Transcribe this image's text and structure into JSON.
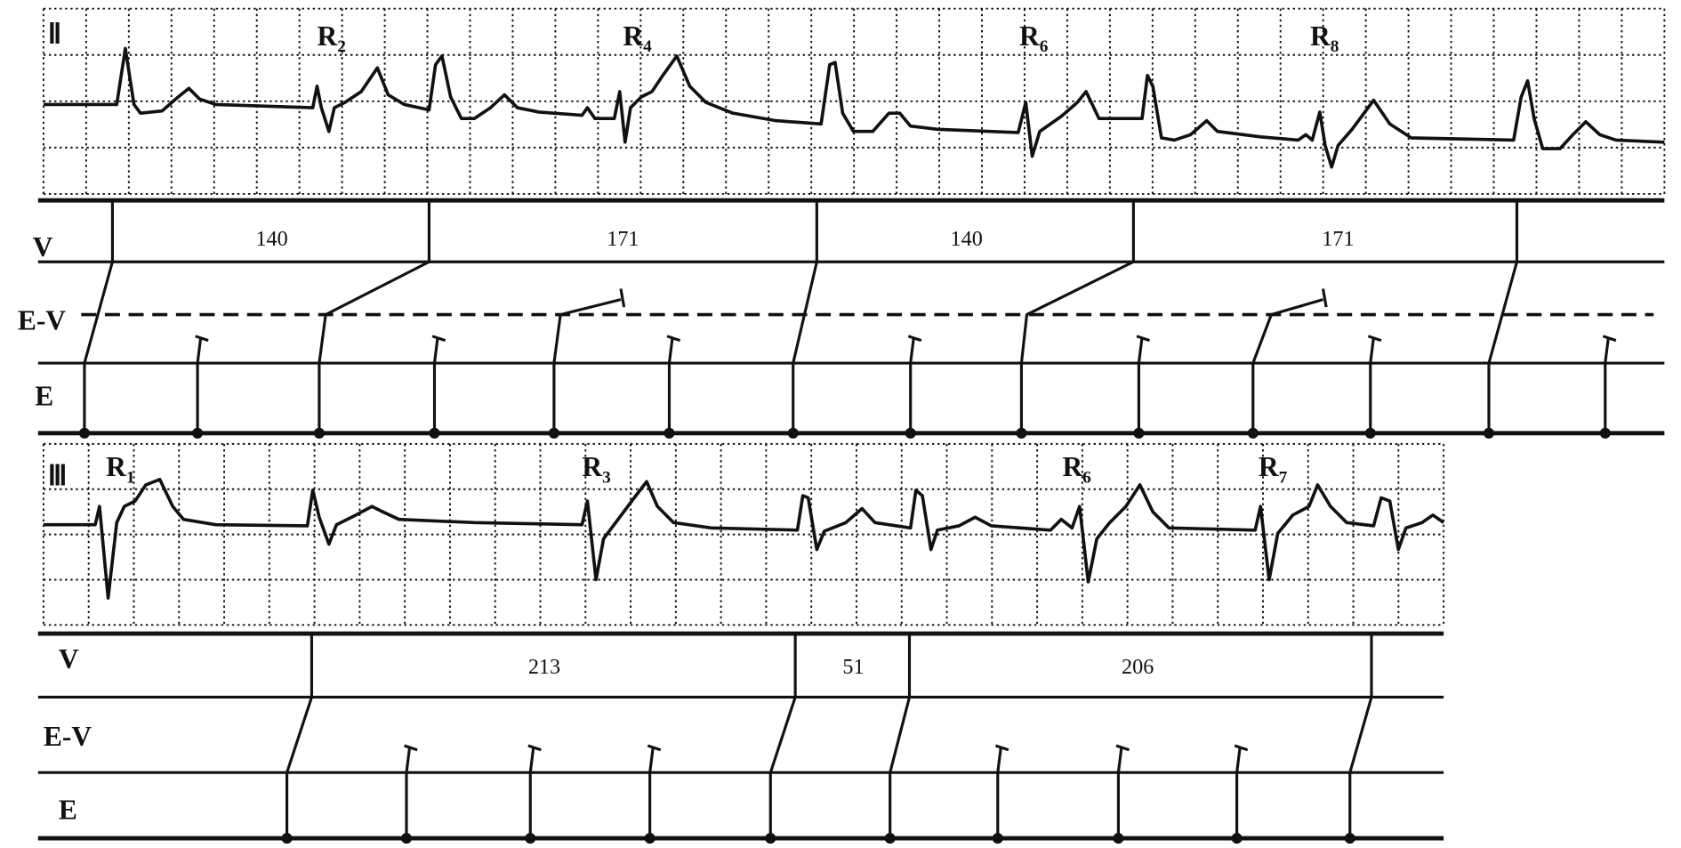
{
  "strips": [
    {
      "lead": "Ⅱ",
      "r_labels": [
        {
          "text": "R",
          "sub": "2"
        },
        {
          "text": "R",
          "sub": "4"
        },
        {
          "text": "R",
          "sub": "6"
        },
        {
          "text": "R",
          "sub": "8"
        }
      ],
      "rows": {
        "v": "V",
        "ev": "E-V",
        "e": "E"
      },
      "v_intervals": [
        "140",
        "171",
        "140",
        "171"
      ]
    },
    {
      "lead": "Ⅲ",
      "r_labels": [
        {
          "text": "R",
          "sub": "1"
        },
        {
          "text": "R",
          "sub": "3"
        },
        {
          "text": "R",
          "sub": "6"
        },
        {
          "text": "R",
          "sub": "7"
        }
      ],
      "rows": {
        "v": "V",
        "ev": "E-V",
        "e": "E"
      },
      "v_intervals": [
        "213",
        "51",
        "206"
      ]
    }
  ]
}
